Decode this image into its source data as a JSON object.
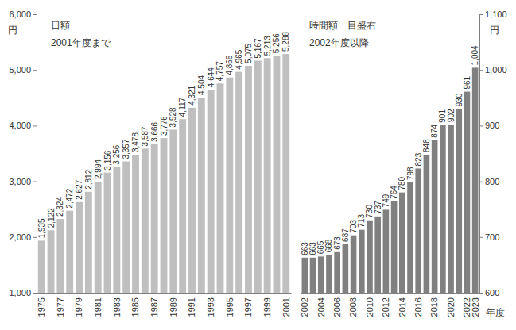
{
  "chart_data": [
    {
      "type": "bar",
      "title": "日額",
      "subtitle": "2001年度まで",
      "ylabel": "円",
      "categories": [
        "1975",
        null,
        "1977",
        null,
        "1979",
        null,
        "1981",
        null,
        "1983",
        null,
        "1985",
        null,
        "1987",
        null,
        "1989",
        null,
        "1991",
        null,
        "1993",
        null,
        "1995",
        null,
        "1997",
        null,
        "1999",
        null,
        "2001"
      ],
      "values": [
        1935,
        2122,
        2324,
        2472,
        2627,
        2812,
        2994,
        3156,
        3256,
        3357,
        3478,
        3587,
        3666,
        3776,
        3928,
        4117,
        4321,
        4504,
        4644,
        4757,
        4866,
        4965,
        5075,
        5167,
        5213,
        5256,
        5288
      ],
      "value_labels": [
        "1,935",
        "2,122",
        "2,324",
        "2,472",
        "2,627",
        "2,812",
        "2,994",
        "3,156",
        "3,256",
        "3,357",
        "3,478",
        "3,587",
        "3,666",
        "3,776",
        "3,928",
        "4,117",
        "4,321",
        "4,504",
        "4,644",
        "4,757",
        "4,866",
        "4,965",
        "5,075",
        "5,167",
        "5,213",
        "5,256",
        "5,288"
      ],
      "color": "#bfbfbf",
      "data_labels": true,
      "grid": false,
      "ylim": [
        1000,
        6000
      ],
      "yticks": [
        {
          "value": 1000,
          "label": "1,000"
        },
        {
          "value": 2000,
          "label": "2,000"
        },
        {
          "value": 3000,
          "label": "3,000"
        },
        {
          "value": 4000,
          "label": "4,000"
        },
        {
          "value": 5000,
          "label": "5,000"
        },
        {
          "value": 6000,
          "label": "6,000"
        }
      ]
    },
    {
      "type": "bar",
      "title": "時間額　目盛右",
      "subtitle": "2002年度以降",
      "ylabel": "円",
      "xlabel": "年度",
      "categories": [
        "2002",
        null,
        "2004",
        null,
        "2006",
        null,
        "2008",
        null,
        "2010",
        null,
        "2012",
        null,
        "2014",
        null,
        "2016",
        null,
        "2018",
        null,
        "2020",
        null,
        "2022",
        "2023"
      ],
      "values": [
        663,
        663,
        665,
        668,
        673,
        687,
        703,
        713,
        730,
        737,
        749,
        764,
        780,
        798,
        823,
        848,
        874,
        901,
        902,
        930,
        961,
        1004
      ],
      "value_labels": [
        "663",
        "663",
        "665",
        "668",
        "673",
        "687",
        "703",
        "713",
        "730",
        "737",
        "749",
        "764",
        "780",
        "798",
        "823",
        "848",
        "874",
        "901",
        "902",
        "930",
        "961",
        "1,004"
      ],
      "color": "#808080",
      "data_labels": true,
      "grid": false,
      "ylim": [
        600,
        1100
      ],
      "yticks": [
        600,
        700,
        800,
        900,
        {
          "value": 1000,
          "label": "1,000"
        },
        {
          "value": 1100,
          "label": "1,100"
        }
      ]
    }
  ]
}
